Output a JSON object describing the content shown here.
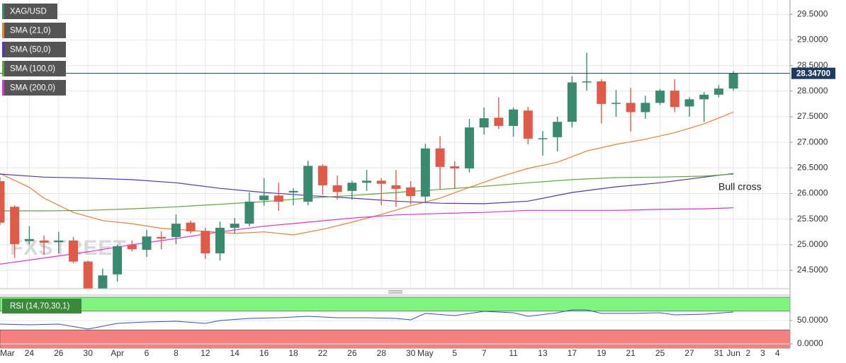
{
  "chart_data": [
    {
      "type": "candlestick",
      "watermark": "FXSTREET",
      "annotation": "Bull cross",
      "last_price": {
        "value": 28.347,
        "label": "28.34700"
      },
      "last_price_color": "#1e3a5f",
      "grid": true,
      "xlim": [
        0,
        53.86
      ],
      "ylim": [
        24.14,
        29.78
      ],
      "yticks": [
        {
          "value": 24.5,
          "label": "24.5000"
        },
        {
          "value": 25,
          "label": "25.0000"
        },
        {
          "value": 25.5,
          "label": "25.5000"
        },
        {
          "value": 26,
          "label": "26.0000"
        },
        {
          "value": 26.5,
          "label": "26.5000"
        },
        {
          "value": 27,
          "label": "27.0000"
        },
        {
          "value": 27.5,
          "label": "27.5000"
        },
        {
          "value": 28,
          "label": "28.0000"
        },
        {
          "value": 28.5,
          "label": "28.5000"
        },
        {
          "value": 29,
          "label": "29.0000"
        },
        {
          "value": 29.5,
          "label": "29.5000"
        }
      ],
      "xticks": [
        {
          "value": 0.5,
          "label": "Mar"
        },
        {
          "value": 2,
          "label": "24"
        },
        {
          "value": 4,
          "label": "26"
        },
        {
          "value": 6,
          "label": "30"
        },
        {
          "value": 8,
          "label": "Apr"
        },
        {
          "value": 10,
          "label": "6"
        },
        {
          "value": 12,
          "label": "8"
        },
        {
          "value": 14,
          "label": "12"
        },
        {
          "value": 16,
          "label": "14"
        },
        {
          "value": 18,
          "label": "16"
        },
        {
          "value": 20,
          "label": "18"
        },
        {
          "value": 22,
          "label": "22"
        },
        {
          "value": 24,
          "label": "26"
        },
        {
          "value": 26,
          "label": "28"
        },
        {
          "value": 28,
          "label": "30"
        },
        {
          "value": 29,
          "label": "May"
        },
        {
          "value": 31,
          "label": "5"
        },
        {
          "value": 33,
          "label": "7"
        },
        {
          "value": 35,
          "label": "11"
        },
        {
          "value": 37,
          "label": "13"
        },
        {
          "value": 39,
          "label": "17"
        },
        {
          "value": 41,
          "label": "19"
        },
        {
          "value": 43,
          "label": "21"
        },
        {
          "value": 45,
          "label": "25"
        },
        {
          "value": 47,
          "label": "27"
        },
        {
          "value": 49,
          "label": "31"
        },
        {
          "value": 50,
          "label": "Jun"
        },
        {
          "value": 51,
          "label": "2"
        },
        {
          "value": 52,
          "label": "3"
        },
        {
          "value": 53,
          "label": "4"
        }
      ],
      "candles": {
        "name": "XAG/USD",
        "color": "#3a8a72",
        "up_color": "#3a8a72",
        "down_color": "#e05a47",
        "open": [
          26.24,
          25.74,
          25.07,
          25.08,
          25.05,
          25.08,
          24.67,
          24.14,
          24.42,
          25.0,
          24.9,
          25.15,
          25.15,
          25.43,
          25.27,
          24.83,
          25.33,
          25.41,
          25.87,
          25.96,
          26.02,
          25.84,
          26.54,
          26.16,
          26.05,
          26.21,
          26.25,
          26.16,
          26.12,
          25.94,
          26.88,
          26.53,
          26.49,
          27.29,
          27.48,
          27.32,
          27.62,
          27.06,
          27.1,
          27.4,
          28.17,
          28.19,
          27.76,
          27.77,
          27.59,
          27.77,
          28.01,
          27.7,
          27.84,
          27.93,
          28.05
        ],
        "high": [
          26.32,
          25.77,
          25.36,
          25.18,
          25.25,
          25.15,
          24.69,
          24.53,
          25.0,
          25.08,
          25.29,
          25.26,
          25.59,
          25.47,
          25.33,
          25.45,
          25.52,
          26.02,
          26.3,
          26.21,
          26.1,
          26.64,
          26.57,
          26.35,
          26.25,
          26.46,
          26.3,
          26.46,
          26.24,
          26.97,
          27.12,
          26.63,
          27.46,
          27.68,
          27.88,
          27.68,
          27.69,
          27.22,
          27.5,
          28.29,
          28.75,
          28.23,
          28.02,
          28.06,
          27.91,
          28.04,
          28.23,
          27.88,
          27.98,
          28.12,
          28.39
        ],
        "low": [
          25.38,
          24.74,
          25.01,
          24.8,
          24.83,
          24.64,
          24.04,
          24.11,
          24.28,
          24.87,
          24.76,
          24.91,
          25.01,
          25.22,
          24.72,
          24.69,
          25.22,
          25.36,
          25.76,
          25.66,
          25.77,
          25.77,
          25.98,
          25.88,
          25.88,
          26.05,
          25.77,
          25.74,
          25.79,
          25.84,
          26.08,
          26.09,
          26.41,
          27.15,
          27.26,
          27.11,
          26.96,
          26.74,
          26.82,
          27.29,
          28.01,
          27.37,
          27.5,
          27.21,
          27.46,
          27.73,
          27.59,
          27.5,
          27.4,
          27.88,
          28.01
        ],
        "close": [
          25.43,
          25.01,
          25.11,
          25.04,
          25.08,
          24.67,
          24.09,
          24.4,
          24.97,
          24.91,
          25.16,
          25.12,
          25.41,
          25.26,
          24.83,
          25.33,
          25.41,
          25.84,
          25.96,
          25.84,
          26.05,
          26.54,
          26.16,
          26.03,
          26.21,
          26.25,
          26.19,
          26.09,
          25.95,
          26.88,
          26.52,
          26.49,
          27.29,
          27.47,
          27.32,
          27.64,
          27.07,
          27.08,
          27.4,
          28.17,
          28.19,
          27.75,
          27.77,
          27.59,
          27.77,
          28.01,
          27.69,
          27.84,
          27.93,
          28.05,
          28.347
        ]
      },
      "lines": [
        {
          "name": "SMA (21,0)",
          "color": "#ee7d2c",
          "x": [
            0,
            2,
            3,
            5,
            7,
            9,
            11,
            14,
            16,
            18,
            20,
            22,
            24,
            26,
            28,
            30,
            32,
            34,
            36,
            38,
            40,
            42,
            44,
            46,
            48,
            50
          ],
          "values": [
            26.39,
            26.12,
            25.91,
            25.63,
            25.47,
            25.41,
            25.32,
            25.26,
            25.22,
            25.25,
            25.19,
            25.3,
            25.44,
            25.59,
            25.76,
            25.91,
            26.12,
            26.32,
            26.49,
            26.61,
            26.83,
            26.96,
            27.06,
            27.19,
            27.36,
            27.59
          ]
        },
        {
          "name": "SMA (50,0)",
          "color": "#5a2fc2",
          "x": [
            0,
            3,
            6,
            9,
            12,
            15,
            18,
            21,
            24,
            27,
            30,
            33,
            36,
            39,
            42,
            45,
            48,
            50
          ],
          "values": [
            26.38,
            26.32,
            26.3,
            26.27,
            26.21,
            26.1,
            26.02,
            25.96,
            25.91,
            25.85,
            25.81,
            25.8,
            25.85,
            26.02,
            26.13,
            26.21,
            26.32,
            26.39
          ]
        },
        {
          "name": "SMA (100,0)",
          "color": "#5aaa38",
          "x": [
            0,
            3,
            6,
            9,
            12,
            15,
            18,
            21,
            24,
            27,
            30,
            33,
            36,
            39,
            42,
            45,
            48,
            50
          ],
          "values": [
            25.66,
            25.66,
            25.67,
            25.7,
            25.74,
            25.79,
            25.84,
            25.91,
            25.96,
            26.02,
            26.08,
            26.14,
            26.21,
            26.27,
            26.31,
            26.32,
            26.34,
            26.38
          ]
        },
        {
          "name": "SMA (200,0)",
          "color": "#e22ae0",
          "x": [
            0,
            3,
            6,
            9,
            12,
            15,
            18,
            21,
            24,
            27,
            30,
            33,
            36,
            39,
            42,
            45,
            48,
            50
          ],
          "values": [
            24.62,
            24.74,
            24.86,
            25.0,
            25.12,
            25.25,
            25.36,
            25.44,
            25.52,
            25.58,
            25.61,
            25.63,
            25.67,
            25.67,
            25.67,
            25.69,
            25.7,
            25.72
          ]
        }
      ]
    },
    {
      "type": "line",
      "name": "RSI (14,70,30,1)",
      "label_color": "#3a8a3a",
      "color": "#2a4fd8",
      "ylim": [
        -9.1,
        104.5
      ],
      "yticks": [
        {
          "value": 0,
          "label": "0.0000"
        },
        {
          "value": 50,
          "label": "50.0000"
        }
      ],
      "bands": [
        {
          "from": 70,
          "to": 100,
          "color": "#7ff57f"
        },
        {
          "from": -9.1,
          "to": 30,
          "color": "#f58080"
        }
      ],
      "x": [
        0,
        2,
        4,
        6,
        8,
        10,
        12,
        14,
        15,
        17,
        19,
        21,
        23,
        25,
        27,
        28,
        29,
        31,
        33,
        35,
        36,
        38,
        39,
        40,
        41,
        43,
        45,
        46,
        48,
        50
      ],
      "values": [
        42.4,
        40.9,
        42.4,
        31.8,
        43.9,
        47,
        48.5,
        43.9,
        50,
        54.5,
        56.1,
        59.1,
        56.1,
        56.1,
        54.5,
        51.5,
        65.2,
        60.6,
        69.7,
        66.7,
        59.1,
        66.7,
        72.7,
        72.7,
        65.2,
        65.2,
        66.7,
        62.1,
        63.6,
        68.2
      ]
    }
  ]
}
